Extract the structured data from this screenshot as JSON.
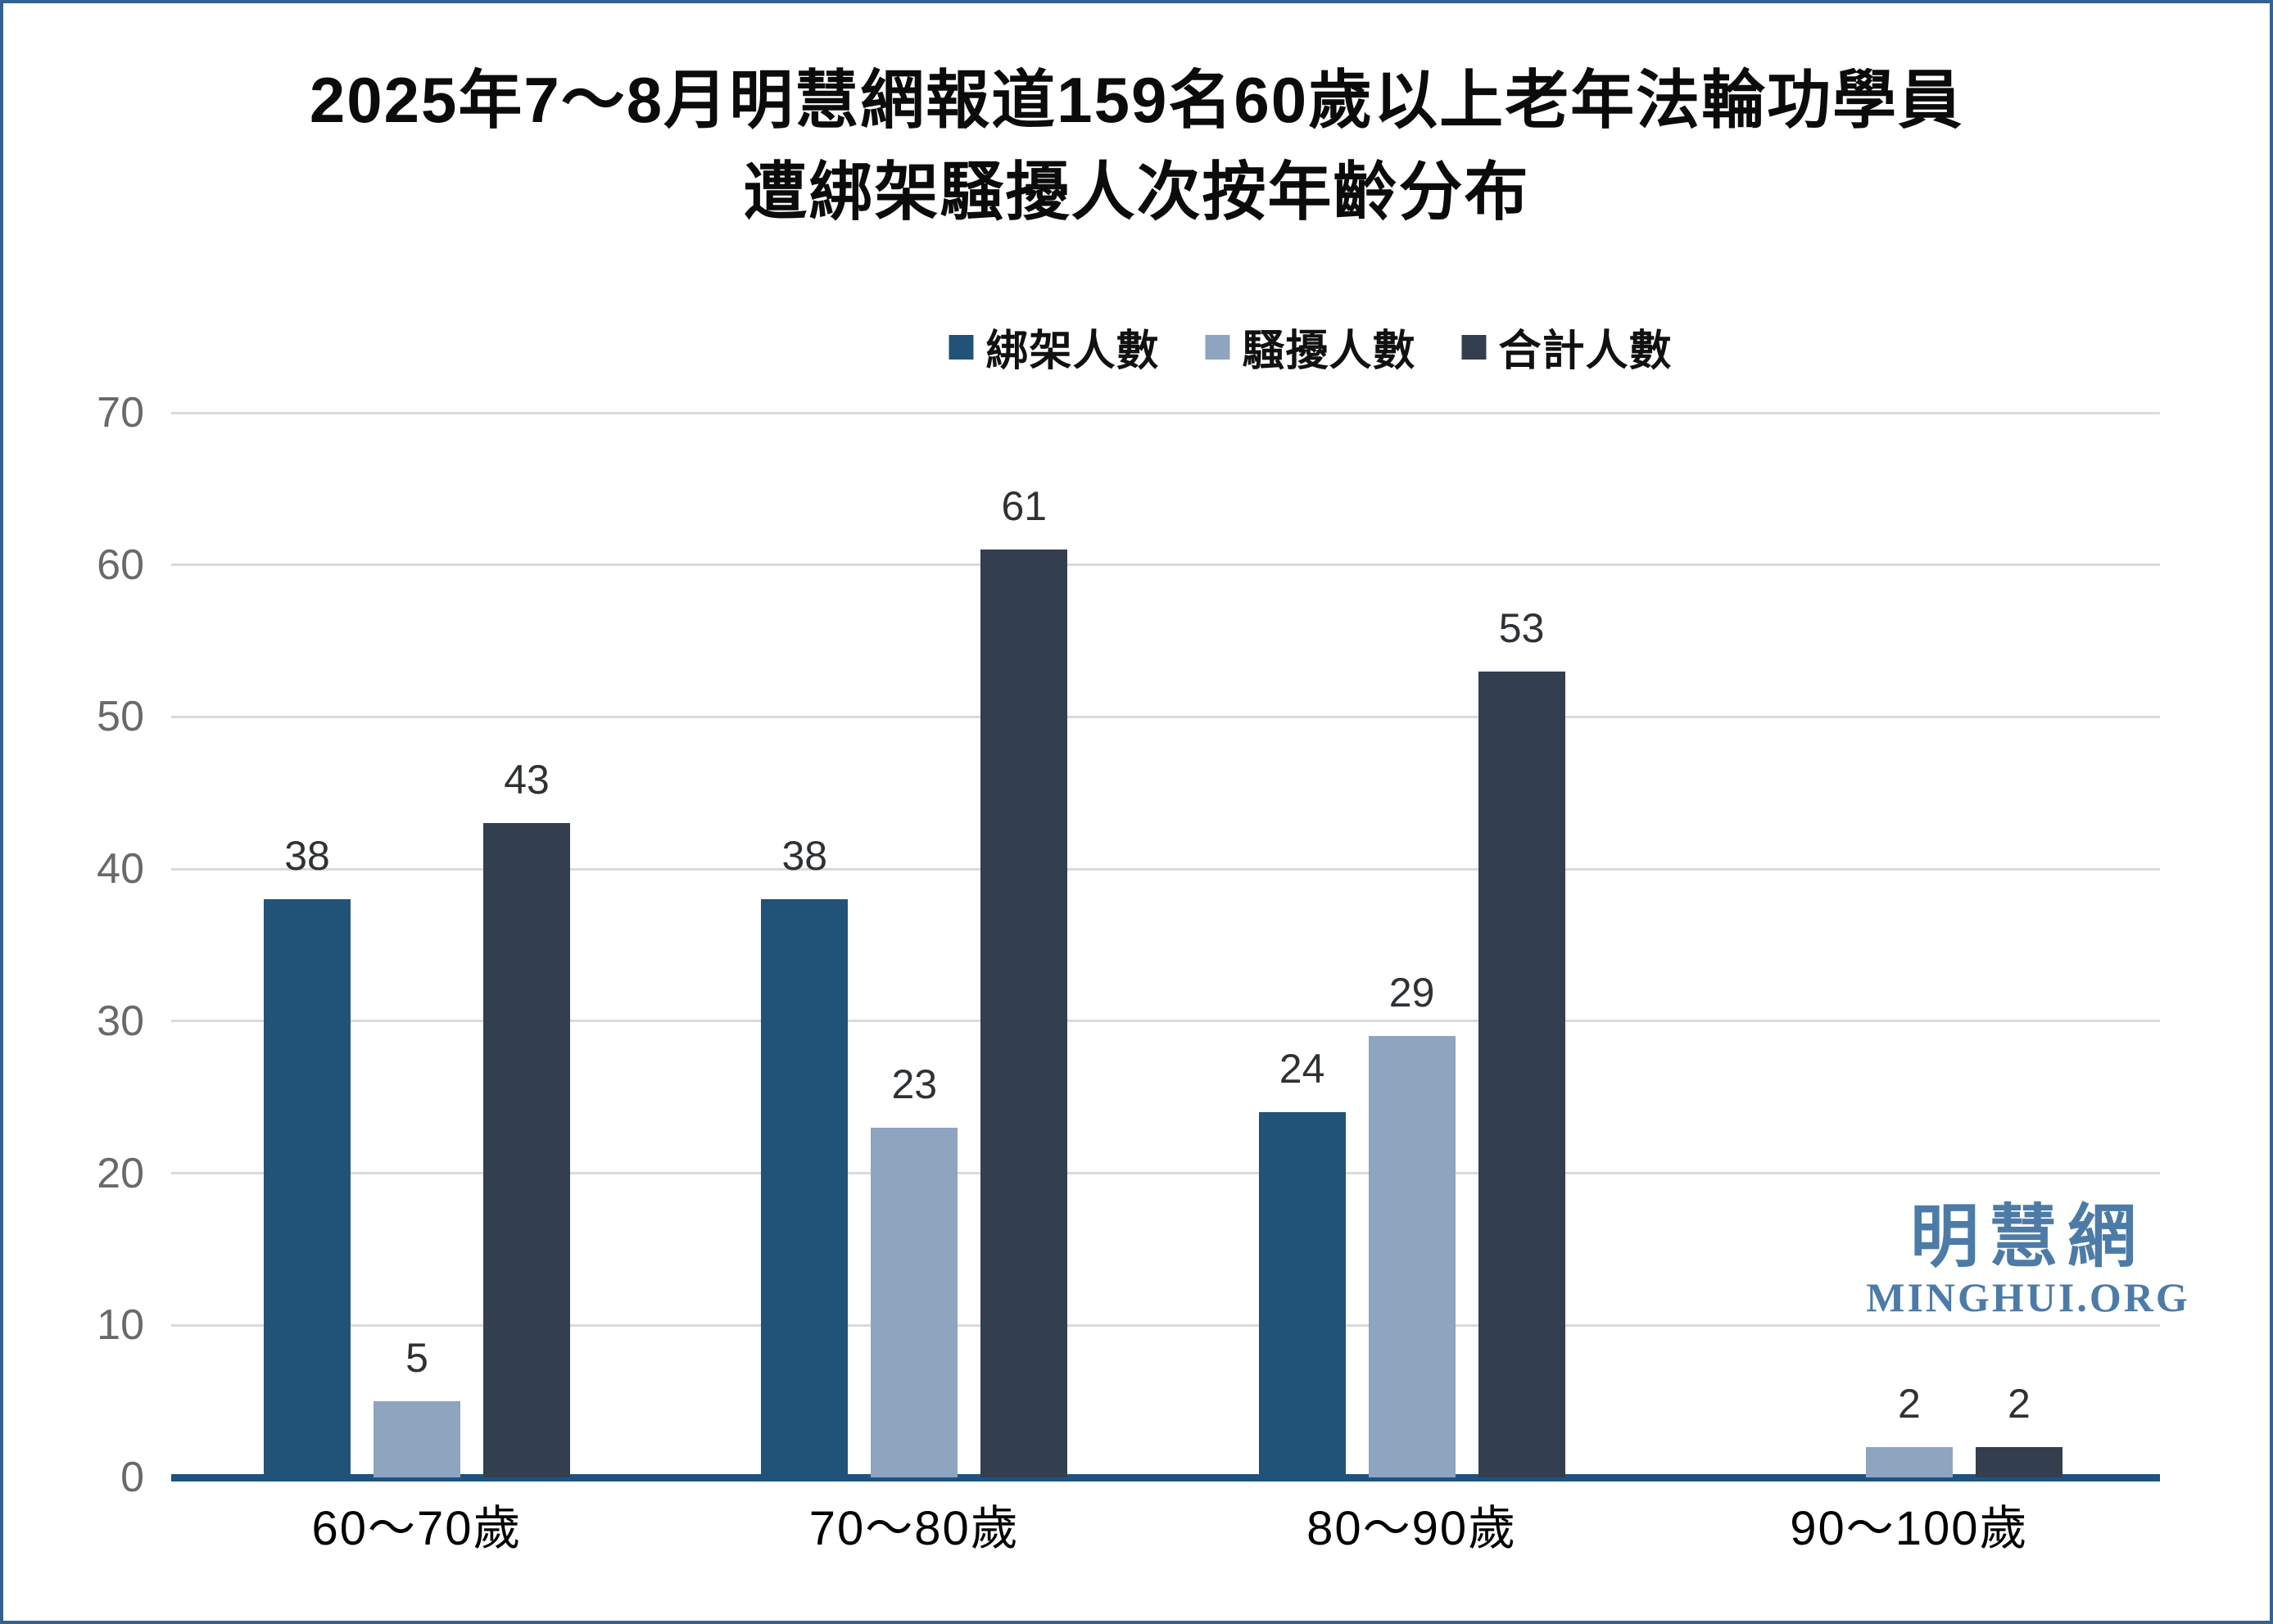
{
  "title": {
    "line1": "2025年7～8月明慧網報道159名60歲以上老年法輪功學員",
    "line2": "遭綁架騷擾人次按年齡分布"
  },
  "legend": [
    {
      "label": "綁架人數",
      "color": "#215378"
    },
    {
      "label": "騷擾人數",
      "color": "#8EA4BF"
    },
    {
      "label": "合計人數",
      "color": "#333E4F"
    }
  ],
  "watermark": {
    "cjk": "明慧網",
    "latin": "MINGHUI.ORG"
  },
  "chart_data": {
    "type": "bar",
    "title": "2025年7～8月明慧網報道159名60歲以上老年法輪功學員遭綁架騷擾人次按年齡分布",
    "categories": [
      "60～70歲",
      "70～80歲",
      "80～90歲",
      "90～100歲"
    ],
    "series": [
      {
        "name": "綁架人數",
        "color": "#215378",
        "values": [
          38,
          38,
          24,
          0
        ]
      },
      {
        "name": "騷擾人數",
        "color": "#8EA4BF",
        "values": [
          5,
          23,
          29,
          2
        ]
      },
      {
        "name": "合計人數",
        "color": "#333E4F",
        "values": [
          43,
          61,
          53,
          2
        ]
      }
    ],
    "ylim": [
      0,
      70
    ],
    "yticks": [
      0,
      10,
      20,
      30,
      40,
      50,
      60,
      70
    ],
    "grid": "horizontal",
    "legend_position": "top",
    "bar_value_labels": true,
    "zero_values_hidden": true
  },
  "colors": {
    "frame_border": "#35618E",
    "axis_line": "#1E537F",
    "gridline": "#DADADA",
    "ytick_label": "#696969",
    "value_label": "#2E3235",
    "xtick_label": "#000000",
    "logo": "#4C7BA7",
    "background": "#FFFFFF"
  }
}
